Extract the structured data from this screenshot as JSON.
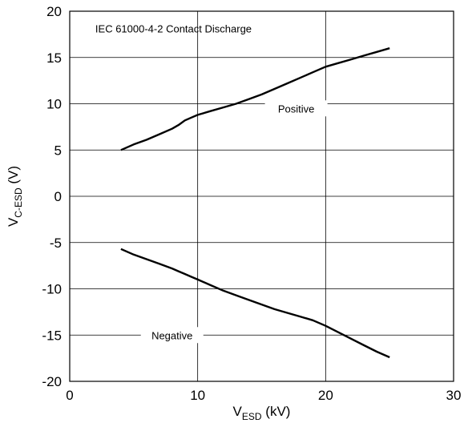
{
  "chart_data": {
    "type": "line",
    "title": "",
    "annotation": "IEC 61000-4-2 Contact Discharge",
    "xlabel": {
      "main": "V",
      "sub": "ESD",
      "unit": " (kV)"
    },
    "ylabel": {
      "main": "V",
      "sub": "C-ESD",
      "unit": " (V)"
    },
    "xlim": [
      0,
      30
    ],
    "ylim": [
      -20,
      20
    ],
    "xticks": [
      0,
      10,
      20,
      30
    ],
    "yticks": [
      -20,
      -15,
      -10,
      -5,
      0,
      5,
      10,
      15,
      20
    ],
    "grid": true,
    "series": [
      {
        "name": "Positive",
        "x": [
          4,
          5,
          6,
          7,
          8,
          8.5,
          9,
          9.5,
          10,
          11,
          12,
          13,
          14,
          15,
          16,
          17,
          18,
          19,
          20,
          21,
          22,
          23,
          24,
          25
        ],
        "y": [
          5.0,
          5.6,
          6.1,
          6.7,
          7.3,
          7.7,
          8.2,
          8.5,
          8.8,
          9.2,
          9.6,
          10.0,
          10.5,
          11.0,
          11.6,
          12.2,
          12.8,
          13.4,
          14.0,
          14.4,
          14.8,
          15.2,
          15.6,
          16.0
        ]
      },
      {
        "name": "Negative",
        "x": [
          4,
          5,
          6,
          7,
          8,
          8.5,
          9,
          9.5,
          10,
          11,
          12,
          13,
          14,
          15,
          16,
          17,
          18,
          19,
          20,
          21,
          22,
          23,
          24,
          25
        ],
        "y": [
          -5.7,
          -6.3,
          -6.8,
          -7.3,
          -7.8,
          -8.1,
          -8.4,
          -8.7,
          -9.0,
          -9.6,
          -10.2,
          -10.7,
          -11.2,
          -11.7,
          -12.2,
          -12.6,
          -13.0,
          -13.4,
          -14.0,
          -14.7,
          -15.4,
          -16.1,
          -16.8,
          -17.4
        ]
      }
    ]
  }
}
